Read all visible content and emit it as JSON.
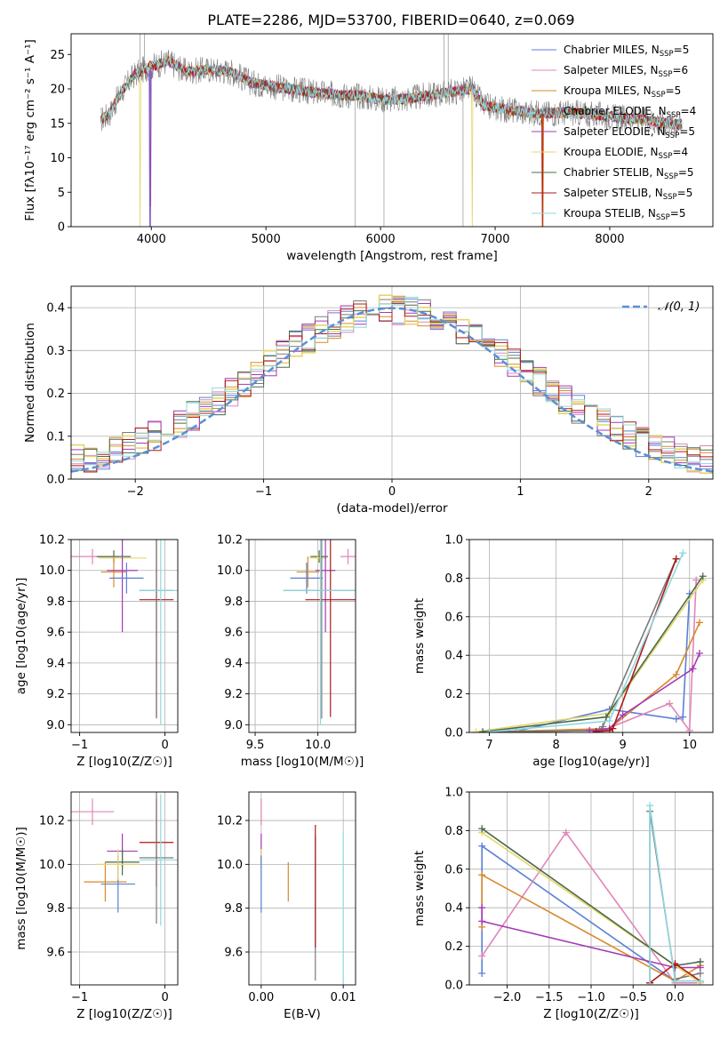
{
  "title": "PLATE=2286, MJD=53700, FIBERID=0640, z=0.069",
  "colors": {
    "Chabrier MILES": "#5b80d6",
    "Salpeter MILES": "#e085b8",
    "Kroupa MILES": "#d98a2a",
    "Chabrier ELODIE": "#7a7a7a",
    "Salpeter ELODIE": "#a43ab6",
    "Kroupa ELODIE": "#e6d56a",
    "Chabrier STELIB": "#4a6b4a",
    "Salpeter STELIB": "#b01818",
    "Kroupa STELIB": "#8fd8e0",
    "data": "#808080",
    "normal": "#5b8fd6"
  },
  "chart_data": [
    {
      "id": "spectrum",
      "type": "line",
      "xlabel": "wavelength [Angstrom, rest frame]",
      "ylabel": "Flux [fλ10⁻¹⁷ erg cm⁻² s⁻¹ A⁻¹]",
      "xlim": [
        3300,
        8900
      ],
      "ylim": [
        0,
        28
      ],
      "xticks": [
        4000,
        5000,
        6000,
        7000,
        8000
      ],
      "yticks": [
        0,
        5,
        10,
        15,
        20,
        25
      ],
      "grid": false,
      "legend_position": "top-right",
      "legend": [
        {
          "name": "Chabrier MILES",
          "label": "Chabrier MILES, N",
          "nssp": "=5"
        },
        {
          "name": "Salpeter MILES",
          "label": "Salpeter MILES, N",
          "nssp": "=6"
        },
        {
          "name": "Kroupa MILES",
          "label": "Kroupa MILES, N",
          "nssp": "=5"
        },
        {
          "name": "Chabrier ELODIE",
          "label": "Chabrier ELODIE, N",
          "nssp": "=4"
        },
        {
          "name": "Salpeter ELODIE",
          "label": "Salpeter ELODIE, N",
          "nssp": "=5"
        },
        {
          "name": "Kroupa ELODIE",
          "label": "Kroupa ELODIE, N",
          "nssp": "=4"
        },
        {
          "name": "Chabrier STELIB",
          "label": "Chabrier STELIB, N",
          "nssp": "=5"
        },
        {
          "name": "Salpeter STELIB",
          "label": "Salpeter STELIB, N",
          "nssp": "=5"
        },
        {
          "name": "Kroupa STELIB",
          "label": "Kroupa STELIB, N",
          "nssp": "=5"
        }
      ],
      "continuum": [
        [
          3560,
          15.5
        ],
        [
          3640,
          16.5
        ],
        [
          3700,
          18.5
        ],
        [
          3760,
          20.0
        ],
        [
          3850,
          22.0
        ],
        [
          3950,
          23.0
        ],
        [
          4050,
          23.5
        ],
        [
          4150,
          24.0
        ],
        [
          4300,
          22.5
        ],
        [
          4500,
          22.8
        ],
        [
          4700,
          22.5
        ],
        [
          4860,
          21.0
        ],
        [
          5000,
          20.5
        ],
        [
          5200,
          20.0
        ],
        [
          5400,
          19.5
        ],
        [
          5600,
          19.2
        ],
        [
          5800,
          19.0
        ],
        [
          6000,
          18.5
        ],
        [
          6200,
          18.5
        ],
        [
          6400,
          19.0
        ],
        [
          6600,
          19.5
        ],
        [
          6800,
          20.0
        ],
        [
          6900,
          17.5
        ],
        [
          7100,
          17.0
        ],
        [
          7300,
          16.5
        ],
        [
          7500,
          16.5
        ],
        [
          7700,
          16.5
        ],
        [
          7900,
          16.2
        ],
        [
          8100,
          15.8
        ],
        [
          8300,
          15.5
        ],
        [
          8500,
          15.0
        ],
        [
          8600,
          14.8
        ]
      ],
      "dropouts": [
        {
          "series": "Kroupa ELODIE",
          "x": 3900
        },
        {
          "series": "Chabrier MILES",
          "x": 3985
        },
        {
          "series": "Salpeter ELODIE",
          "x": 3990
        },
        {
          "series": "Kroupa ELODIE",
          "x": 6800
        },
        {
          "series": "Salpeter STELIB",
          "x": 7410
        },
        {
          "series": "Kroupa MILES",
          "x": 7420
        }
      ]
    },
    {
      "id": "residuals",
      "type": "line",
      "xlabel": "(data-model)/error",
      "ylabel": "Normed distribution",
      "xlim": [
        -2.5,
        2.5
      ],
      "ylim": [
        0,
        0.45
      ],
      "xticks": [
        -2,
        -1,
        0,
        1,
        2
      ],
      "yticks": [
        0.0,
        0.1,
        0.2,
        0.3,
        0.4
      ],
      "grid": true,
      "legend_position": "top-right",
      "normal_label": "𝒩(0, 1)",
      "bins": 50
    },
    {
      "id": "age-vs-z",
      "type": "scatter",
      "xlabel": "Z [log10(Z/Z☉)]",
      "ylabel": "age  [log10(age/yr)]",
      "xlim": [
        -1.1,
        0.15
      ],
      "ylim": [
        8.95,
        10.2
      ],
      "xticks": [
        -1,
        0
      ],
      "yticks": [
        9.0,
        9.2,
        9.4,
        9.6,
        9.8,
        10.0,
        10.2
      ],
      "grid": true,
      "points": [
        {
          "series": "Salpeter MILES",
          "x": -0.85,
          "xerr": 0.3,
          "y": 10.09,
          "yerr": 0.05
        },
        {
          "series": "Chabrier STELIB",
          "x": -0.6,
          "xerr": 0.2,
          "y": 10.09,
          "yerr": 0.04
        },
        {
          "series": "Kroupa ELODIE",
          "x": -0.5,
          "xerr": 0.28,
          "y": 10.08,
          "yerr": 0.03
        },
        {
          "series": "Kroupa MILES",
          "x": -0.6,
          "xerr": 0.15,
          "y": 9.99,
          "yerr": 0.1
        },
        {
          "series": "Salpeter ELODIE",
          "x": -0.5,
          "xerr": 0.18,
          "y": 10.0,
          "yerr": 0.4
        },
        {
          "series": "Chabrier MILES",
          "x": -0.45,
          "xerr": 0.2,
          "y": 9.95,
          "yerr": 0.1
        },
        {
          "series": "Salpeter STELIB",
          "x": -0.1,
          "xerr": 0.2,
          "y": 9.81,
          "yerr": 0.76
        },
        {
          "series": "Chabrier ELODIE",
          "x": -0.1,
          "xerr": 0.2,
          "y": 9.87,
          "yerr": 0.83
        },
        {
          "series": "Kroupa STELIB",
          "x": -0.05,
          "xerr": 0.25,
          "y": 9.87,
          "yerr": 0.87
        }
      ]
    },
    {
      "id": "age-vs-mass",
      "type": "scatter",
      "xlabel": "mass [log10(M/M☉)]",
      "ylabel": "",
      "xlim": [
        9.45,
        10.3
      ],
      "ylim": [
        8.95,
        10.2
      ],
      "xticks": [
        9.5,
        10.0
      ],
      "yticks": [
        9.0,
        9.2,
        9.4,
        9.6,
        9.8,
        10.0,
        10.2
      ],
      "grid": true,
      "points": [
        {
          "series": "Salpeter MILES",
          "x": 10.24,
          "xerr": 0.06,
          "y": 10.09,
          "yerr": 0.05
        },
        {
          "series": "Chabrier STELIB",
          "x": 10.01,
          "xerr": 0.07,
          "y": 10.09,
          "yerr": 0.04
        },
        {
          "series": "Kroupa ELODIE",
          "x": 10.0,
          "xerr": 0.07,
          "y": 10.08,
          "yerr": 0.03
        },
        {
          "series": "Kroupa MILES",
          "x": 9.92,
          "xerr": 0.09,
          "y": 9.99,
          "yerr": 0.1
        },
        {
          "series": "Salpeter ELODIE",
          "x": 10.06,
          "xerr": 0.08,
          "y": 10.0,
          "yerr": 0.4
        },
        {
          "series": "Chabrier MILES",
          "x": 9.91,
          "xerr": 0.13,
          "y": 9.95,
          "yerr": 0.1
        },
        {
          "series": "Salpeter STELIB",
          "x": 10.1,
          "xerr": 0.2,
          "y": 9.81,
          "yerr": 0.76
        },
        {
          "series": "Chabrier ELODIE",
          "x": 10.03,
          "xerr": 0.3,
          "y": 9.87,
          "yerr": 0.83
        },
        {
          "series": "Kroupa STELIB",
          "x": 10.02,
          "xerr": 0.3,
          "y": 9.87,
          "yerr": 0.87
        }
      ]
    },
    {
      "id": "weight-vs-age",
      "type": "line",
      "xlabel": "age  [log10(age/yr)]",
      "ylabel": "mass weight",
      "xlim": [
        6.7,
        10.35
      ],
      "ylim": [
        0,
        1.0
      ],
      "xticks": [
        7,
        8,
        9,
        10
      ],
      "yticks": [
        0.0,
        0.2,
        0.4,
        0.6,
        0.8,
        1.0
      ],
      "grid": true,
      "series": [
        {
          "name": "Chabrier MILES",
          "x": [
            7.4,
            8.8,
            9.8,
            9.9,
            10.0
          ],
          "y": [
            0.005,
            0.12,
            0.07,
            0.08,
            0.72
          ]
        },
        {
          "name": "Salpeter MILES",
          "x": [
            6.9,
            8.7,
            9.7,
            10.0,
            10.1
          ],
          "y": [
            0.003,
            0.01,
            0.15,
            0.01,
            0.79
          ]
        },
        {
          "name": "Kroupa MILES",
          "x": [
            7.0,
            8.8,
            9.8,
            10.15
          ],
          "y": [
            0.003,
            0.02,
            0.3,
            0.57
          ]
        },
        {
          "name": "Chabrier ELODIE",
          "x": [
            7.0,
            8.65,
            8.7,
            9.8
          ],
          "y": [
            0.003,
            0.01,
            0.03,
            0.9
          ]
        },
        {
          "name": "Salpeter ELODIE",
          "x": [
            8.5,
            8.8,
            9.0,
            10.05,
            10.15
          ],
          "y": [
            0.01,
            0.02,
            0.09,
            0.33,
            0.41
          ]
        },
        {
          "name": "Kroupa ELODIE",
          "x": [
            6.8,
            8.8,
            10.2
          ],
          "y": [
            0.003,
            0.1,
            0.79
          ]
        },
        {
          "name": "Chabrier STELIB",
          "x": [
            6.9,
            8.75,
            10.2
          ],
          "y": [
            0.003,
            0.08,
            0.81
          ]
        },
        {
          "name": "Salpeter STELIB",
          "x": [
            8.6,
            8.8,
            8.85,
            9.8
          ],
          "y": [
            0.005,
            0.01,
            0.02,
            0.9
          ]
        },
        {
          "name": "Kroupa STELIB",
          "x": [
            7.0,
            8.8,
            9.9
          ],
          "y": [
            0.003,
            0.06,
            0.93
          ]
        }
      ]
    },
    {
      "id": "mass-vs-z",
      "type": "scatter",
      "xlabel": "Z [log10(Z/Z☉)]",
      "ylabel": "mass [log10(M/M☉)]",
      "xlim": [
        -1.1,
        0.15
      ],
      "ylim": [
        9.45,
        10.33
      ],
      "xticks": [
        -1,
        0
      ],
      "yticks": [
        9.6,
        9.8,
        10.0,
        10.2
      ],
      "grid": true,
      "points": [
        {
          "series": "Salpeter MILES",
          "x": -0.85,
          "xerr": 0.25,
          "y": 10.24,
          "yerr": 0.06
        },
        {
          "series": "Salpeter ELODIE",
          "x": -0.5,
          "xerr": 0.18,
          "y": 10.06,
          "yerr": 0.08
        },
        {
          "series": "Kroupa MILES",
          "x": -0.7,
          "xerr": 0.25,
          "y": 9.92,
          "yerr": 0.09
        },
        {
          "series": "Chabrier MILES",
          "x": -0.55,
          "xerr": 0.2,
          "y": 9.91,
          "yerr": 0.13
        },
        {
          "series": "Chabrier STELIB",
          "x": -0.5,
          "xerr": 0.2,
          "y": 10.01,
          "yerr": 0.06
        },
        {
          "series": "Kroupa ELODIE",
          "x": -0.55,
          "xerr": 0.25,
          "y": 10.0,
          "yerr": 0.07
        },
        {
          "series": "Salpeter STELIB",
          "x": -0.1,
          "xerr": 0.2,
          "y": 10.1,
          "yerr": 0.2
        },
        {
          "series": "Chabrier ELODIE",
          "x": -0.1,
          "xerr": 0.2,
          "y": 10.03,
          "yerr": 0.3
        },
        {
          "series": "Kroupa STELIB",
          "x": -0.05,
          "xerr": 0.25,
          "y": 10.02,
          "yerr": 0.3
        }
      ]
    },
    {
      "id": "mass-vs-ebv",
      "type": "scatter",
      "xlabel": "E(B-V)",
      "ylabel": "",
      "xlim": [
        -0.0015,
        0.0115
      ],
      "ylim": [
        9.45,
        10.33
      ],
      "xticks": [
        0.0,
        0.01
      ],
      "xticklabels": [
        "0.00",
        "0.01"
      ],
      "yticks": [
        9.6,
        9.8,
        10.0,
        10.2
      ],
      "grid": true,
      "points": [
        {
          "series": "Salpeter MILES",
          "x": 0.0,
          "y": 10.24,
          "yerr": 0.06
        },
        {
          "series": "Salpeter ELODIE",
          "x": 0.0,
          "y": 10.06,
          "yerr": 0.08
        },
        {
          "series": "Kroupa ELODIE",
          "x": 0.0,
          "y": 10.0,
          "yerr": 0.07
        },
        {
          "series": "Chabrier MILES",
          "x": 0.0,
          "y": 9.91,
          "yerr": 0.13
        },
        {
          "series": "Kroupa MILES",
          "x": 0.0033,
          "y": 9.92,
          "yerr": 0.09
        },
        {
          "series": "Chabrier ELODIE",
          "x": 0.0066,
          "y": 9.8,
          "yerr": 0.33
        },
        {
          "series": "Salpeter STELIB",
          "x": 0.0066,
          "y": 9.9,
          "yerr": 0.28
        },
        {
          "series": "Kroupa STELIB",
          "x": 0.01,
          "y": 9.8,
          "yerr": 0.35
        }
      ]
    },
    {
      "id": "weight-vs-z",
      "type": "line",
      "xlabel": "Z [log10(Z/Z☉)]",
      "ylabel": "mass weight",
      "xlim": [
        -2.45,
        0.45
      ],
      "ylim": [
        0,
        1.0
      ],
      "xticks": [
        -2.0,
        -1.5,
        -1.0,
        -0.5,
        0.0
      ],
      "xticklabels": [
        "−2.0",
        "−1.5",
        "−1.0",
        "−0.5",
        "0.0"
      ],
      "yticks": [
        0.0,
        0.2,
        0.4,
        0.6,
        0.8,
        1.0
      ],
      "grid": true,
      "series": [
        {
          "name": "Chabrier MILES",
          "x": [
            -2.3,
            -2.3,
            0.0,
            0.3
          ],
          "y": [
            0.06,
            0.72,
            0.02,
            0.02
          ]
        },
        {
          "name": "Salpeter MILES",
          "x": [
            -2.3,
            -1.3,
            0.0,
            0.3
          ],
          "y": [
            0.15,
            0.79,
            0.01,
            0.01
          ]
        },
        {
          "name": "Kroupa MILES",
          "x": [
            -2.3,
            -2.3,
            0.0,
            0.3
          ],
          "y": [
            0.3,
            0.57,
            0.02,
            0.1
          ]
        },
        {
          "name": "Chabrier ELODIE",
          "x": [
            -0.3,
            -0.3,
            0.0,
            0.3
          ],
          "y": [
            0.01,
            0.9,
            0.03,
            0.06
          ]
        },
        {
          "name": "Salpeter ELODIE",
          "x": [
            -2.3,
            -2.3,
            0.0,
            0.3
          ],
          "y": [
            0.4,
            0.33,
            0.09,
            0.09
          ]
        },
        {
          "name": "Kroupa ELODIE",
          "x": [
            -2.3,
            0.0,
            0.3
          ],
          "y": [
            0.79,
            0.1,
            0.01
          ]
        },
        {
          "name": "Chabrier STELIB",
          "x": [
            -2.3,
            0.0,
            0.3
          ],
          "y": [
            0.81,
            0.1,
            0.12
          ]
        },
        {
          "name": "Salpeter STELIB",
          "x": [
            -0.3,
            0.0,
            0.3
          ],
          "y": [
            0.01,
            0.11,
            0.02
          ]
        },
        {
          "name": "Kroupa STELIB",
          "x": [
            -0.3,
            -0.3,
            0.0,
            0.3
          ],
          "y": [
            0.0,
            0.93,
            0.02,
            0.02
          ]
        }
      ]
    }
  ]
}
